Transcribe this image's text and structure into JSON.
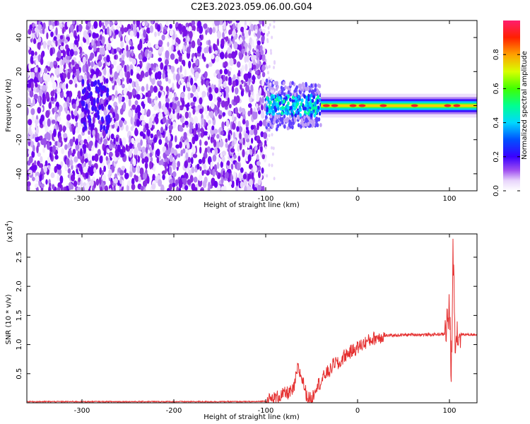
{
  "title": "C2E3.2023.059.06.00.G04",
  "colors": {
    "snr_line": "#e53030",
    "spectrogram_noise": "#8a2be2",
    "colormap": [
      "#ffffff",
      "#e0c8f8",
      "#8a2be2",
      "#4b00ff",
      "#0000ff",
      "#00d0ff",
      "#00ff80",
      "#40ff00",
      "#ffff00",
      "#ff8000",
      "#ff0000",
      "#ff1493"
    ]
  },
  "chart_data": [
    {
      "type": "heatmap",
      "xlabel": "Height of straight line (km)",
      "ylabel": "Frequency (Hz)",
      "xlim": [
        -360,
        130
      ],
      "ylim": [
        -50,
        50
      ],
      "xticks": [
        -300,
        -200,
        -100,
        0,
        100
      ],
      "yticks": [
        -40,
        -20,
        0,
        20,
        40
      ],
      "colorbar": {
        "label": "Normalized spectral amplitude",
        "range": [
          0,
          1
        ],
        "ticks": [
          "0.0",
          "0.2",
          "0.4",
          "0.6",
          "0.8"
        ]
      },
      "features": [
        {
          "x_range": [
            -360,
            -100
          ],
          "description_level": 0.15
        },
        {
          "x_range": [
            -100,
            -40
          ],
          "freq_center": 0,
          "level": 0.4
        },
        {
          "x_range": [
            -40,
            130
          ],
          "freq_center": 0,
          "level": 0.9
        }
      ]
    },
    {
      "type": "line",
      "xlabel": "Height of straight line (km)",
      "ylabel": "SNR (10 * v/v)",
      "yscale_label": "(x10",
      "yscale_exp": "4",
      "xlim": [
        -360,
        130
      ],
      "ylim": [
        0,
        2.9
      ],
      "xticks": [
        -300,
        -200,
        -100,
        0,
        100
      ],
      "yticks": [
        "0.5",
        "1.0",
        "1.5",
        "2.0",
        "2.5"
      ],
      "x": [
        -360,
        -300,
        -200,
        -110,
        -100,
        -90,
        -80,
        -70,
        -65,
        -60,
        -55,
        -50,
        -45,
        -40,
        -35,
        -30,
        -25,
        -20,
        -15,
        -10,
        -5,
        0,
        10,
        20,
        30,
        40,
        60,
        80,
        95,
        100,
        102,
        104,
        106,
        110,
        120,
        130
      ],
      "y": [
        0.02,
        0.02,
        0.02,
        0.02,
        0.03,
        0.08,
        0.15,
        0.2,
        0.6,
        0.4,
        0.1,
        0.05,
        0.3,
        0.35,
        0.5,
        0.55,
        0.7,
        0.65,
        0.8,
        0.85,
        0.9,
        0.95,
        1.05,
        1.12,
        1.15,
        1.16,
        1.17,
        1.17,
        1.18,
        1.6,
        0.4,
        2.7,
        1.2,
        1.18,
        1.17,
        1.17
      ]
    }
  ]
}
